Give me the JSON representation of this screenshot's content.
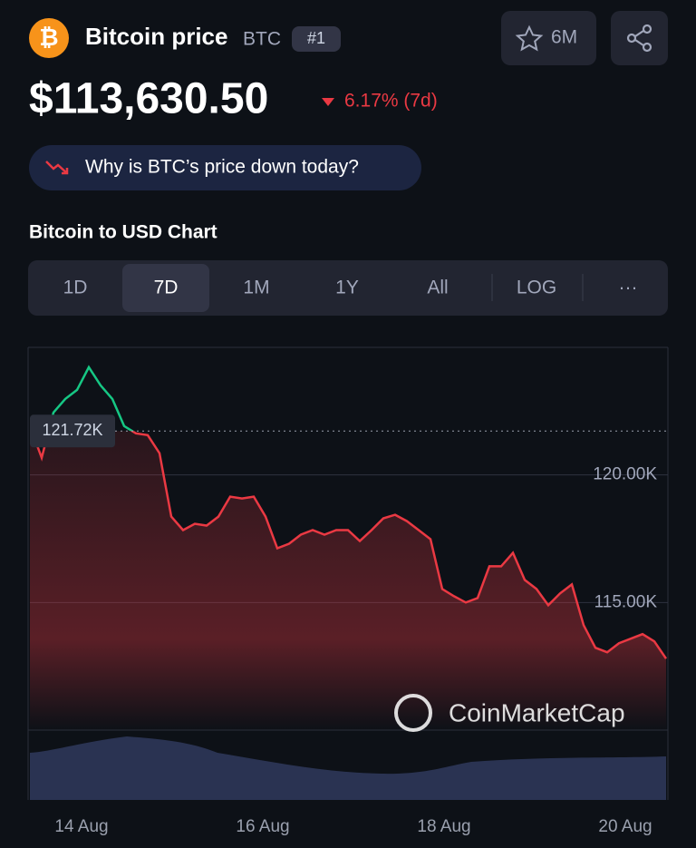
{
  "header": {
    "title": "Bitcoin price",
    "symbol": "BTC",
    "rank": "#1",
    "watchlist": "6M",
    "price": "$113,630.50",
    "change": "6.17% (7d)",
    "why": "Why is BTC’s price down today?"
  },
  "chart_title": "Bitcoin to USD Chart",
  "tabs": [
    "1D",
    "7D",
    "1M",
    "1Y",
    "All",
    "LOG",
    "···"
  ],
  "selected_tab": "7D",
  "watermark": "CoinMarketCap",
  "chart_data": {
    "type": "line",
    "ylim": [
      110000,
      125000
    ],
    "yticks": [
      {
        "value": 115000,
        "label": "115.00K"
      },
      {
        "value": 120000,
        "label": "120.00K"
      }
    ],
    "reference": {
      "value": 121720,
      "label": "121.72K"
    },
    "xticks": [
      "14 Aug",
      "16 Aug",
      "18 Aug",
      "20 Aug"
    ],
    "colors": {
      "up": "#16c784",
      "down": "#ea3943"
    },
    "values": [
      121915,
      120674,
      122447,
      122979,
      123333,
      124220,
      123510,
      122979,
      121915,
      121631,
      121560,
      120851,
      118369,
      117837,
      118085,
      118014,
      118369,
      119149,
      119078,
      119149,
      118369,
      117128,
      117305,
      117660,
      117837,
      117660,
      117837,
      117837,
      117411,
      117837,
      118298,
      118440,
      118191,
      117837,
      117482,
      115532,
      115248,
      115000,
      115177,
      116418,
      116418,
      116950,
      115887,
      115532,
      114894,
      115355,
      115709,
      114113,
      113227,
      113050,
      113404,
      113582,
      113759,
      113475,
      112801
    ]
  }
}
